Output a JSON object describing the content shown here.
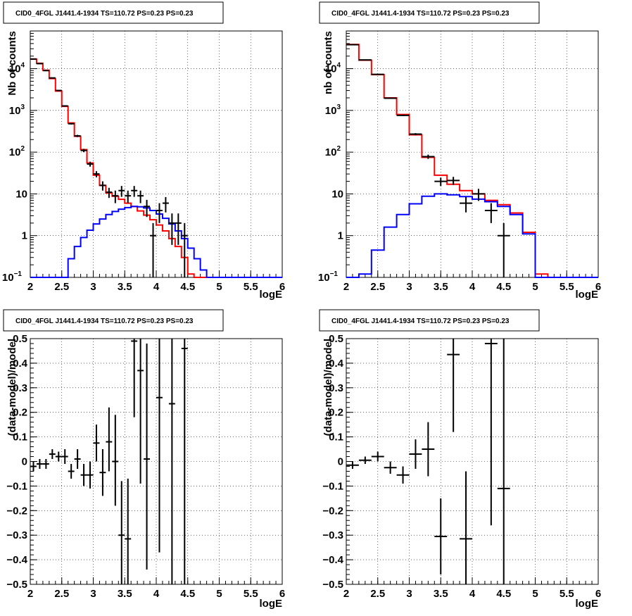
{
  "chart_data": [
    {
      "type": "line",
      "panel": "top-left",
      "title": "CID0_4FGL J1441.4-1934 TS=110.72 PS=0.23 PS=0.23",
      "xlabel": "logE",
      "ylabel": "Nb of counts",
      "xlim": [
        2,
        6
      ],
      "ylim": [
        0.1,
        80000
      ],
      "yscale": "log",
      "grid": true,
      "x_ticks": [
        "2",
        "2.5",
        "3",
        "3.5",
        "4",
        "4.5",
        "5",
        "5.5",
        "6"
      ],
      "y_ticks": [
        {
          "value": 0.1,
          "label": "10",
          "sup": "−1"
        },
        {
          "value": 1,
          "label": "1",
          "sup": ""
        },
        {
          "value": 10,
          "label": "10",
          "sup": ""
        },
        {
          "value": 100,
          "label": "10",
          "sup": "2"
        },
        {
          "value": 1000,
          "label": "10",
          "sup": "3"
        },
        {
          "value": 10000,
          "label": "10",
          "sup": "4"
        }
      ],
      "bin_edges": [
        2.0,
        2.1,
        2.2,
        2.3,
        2.4,
        2.5,
        2.6,
        2.7,
        2.8,
        2.9,
        3.0,
        3.1,
        3.2,
        3.3,
        3.4,
        3.5,
        3.6,
        3.7,
        3.8,
        3.9,
        4.0,
        4.1,
        4.2,
        4.3,
        4.4,
        4.5,
        4.6,
        4.7,
        4.8,
        4.9,
        5.0,
        5.1,
        5.2,
        5.3,
        5.4,
        5.5,
        5.6,
        5.7,
        5.8,
        5.9,
        6.0
      ],
      "series": [
        {
          "role": "total_model",
          "color": "#ff0000",
          "values": [
            17000,
            13500,
            9200,
            5800,
            2900,
            1250,
            500,
            240,
            115,
            55,
            28,
            16,
            10.5,
            8.8,
            7.4,
            6.0,
            5.0,
            3.9,
            3.1,
            2.4,
            1.8,
            1.3,
            0.85,
            0.55,
            0.3,
            0.12,
            0.1,
            0.1,
            0.1,
            0.1,
            0.1,
            0.1,
            0.1,
            0.1,
            0.1,
            0.1,
            0.1,
            0.1,
            0.1,
            0.1
          ]
        },
        {
          "role": "source_model",
          "color": "#0000ff",
          "values": [
            0.1,
            0.1,
            0.1,
            0.1,
            0.1,
            0.1,
            0.28,
            0.55,
            0.9,
            1.35,
            1.9,
            2.5,
            3.2,
            3.8,
            4.3,
            4.7,
            5.0,
            4.9,
            4.6,
            4.0,
            3.3,
            2.6,
            1.9,
            1.3,
            0.85,
            0.5,
            0.28,
            0.15,
            0.1,
            0.1,
            0.1,
            0.1,
            0.1,
            0.1,
            0.1,
            0.1,
            0.1,
            0.1,
            0.1,
            0.1
          ]
        }
      ],
      "data_points": [
        {
          "x": 2.05,
          "y": 17000,
          "lo": 16800,
          "hi": 17200
        },
        {
          "x": 2.15,
          "y": 13200,
          "lo": 13000,
          "hi": 13400
        },
        {
          "x": 2.25,
          "y": 9000,
          "lo": 8800,
          "hi": 9200
        },
        {
          "x": 2.35,
          "y": 6000,
          "lo": 5900,
          "hi": 6100
        },
        {
          "x": 2.45,
          "y": 3000,
          "lo": 2950,
          "hi": 3050
        },
        {
          "x": 2.55,
          "y": 1280,
          "lo": 1240,
          "hi": 1320
        },
        {
          "x": 2.65,
          "y": 480,
          "lo": 460,
          "hi": 500
        },
        {
          "x": 2.75,
          "y": 245,
          "lo": 230,
          "hi": 260
        },
        {
          "x": 2.85,
          "y": 110,
          "lo": 100,
          "hi": 120
        },
        {
          "x": 2.95,
          "y": 52,
          "lo": 45,
          "hi": 59
        },
        {
          "x": 3.05,
          "y": 30,
          "lo": 25,
          "hi": 35
        },
        {
          "x": 3.15,
          "y": 16,
          "lo": 12,
          "hi": 20
        },
        {
          "x": 3.25,
          "y": 11,
          "lo": 8,
          "hi": 14
        },
        {
          "x": 3.35,
          "y": 9,
          "lo": 6,
          "hi": 12
        },
        {
          "x": 3.45,
          "y": 12,
          "lo": 8.5,
          "hi": 15.5
        },
        {
          "x": 3.55,
          "y": 9,
          "lo": 6,
          "hi": 12
        },
        {
          "x": 3.65,
          "y": 12,
          "lo": 8.5,
          "hi": 15.5
        },
        {
          "x": 3.75,
          "y": 9,
          "lo": 6,
          "hi": 12
        },
        {
          "x": 3.85,
          "y": 5,
          "lo": 2.8,
          "hi": 7.2
        },
        {
          "x": 3.95,
          "y": 1,
          "lo": 0.1,
          "hi": 2
        },
        {
          "x": 4.05,
          "y": 4,
          "lo": 2,
          "hi": 6
        },
        {
          "x": 4.15,
          "y": 6,
          "lo": 3.6,
          "hi": 8.4
        },
        {
          "x": 4.25,
          "y": 2,
          "lo": 0.6,
          "hi": 3.4
        },
        {
          "x": 4.35,
          "y": 2,
          "lo": 0.6,
          "hi": 3.4
        },
        {
          "x": 4.45,
          "y": 1,
          "lo": 0.1,
          "hi": 2
        }
      ]
    },
    {
      "type": "line",
      "panel": "top-right",
      "title": "CID0_4FGL J1441.4-1934 TS=110.72 PS=0.23 PS=0.23",
      "xlabel": "logE",
      "ylabel": "nb of counts",
      "xlim": [
        2,
        6
      ],
      "ylim": [
        0.1,
        80000
      ],
      "yscale": "log",
      "grid": true,
      "x_ticks": [
        "2",
        "2.5",
        "3",
        "3.5",
        "4",
        "4.5",
        "5",
        "5.5",
        "6"
      ],
      "y_ticks": [
        {
          "value": 0.1,
          "label": "10",
          "sup": "−1"
        },
        {
          "value": 1,
          "label": "1",
          "sup": ""
        },
        {
          "value": 10,
          "label": "10",
          "sup": ""
        },
        {
          "value": 100,
          "label": "10",
          "sup": "2"
        },
        {
          "value": 1000,
          "label": "10",
          "sup": "3"
        },
        {
          "value": 10000,
          "label": "10",
          "sup": "4"
        }
      ],
      "bin_edges": [
        2.0,
        2.2,
        2.4,
        2.6,
        2.8,
        3.0,
        3.2,
        3.4,
        3.6,
        3.8,
        4.0,
        4.2,
        4.4,
        4.6,
        4.8,
        5.0,
        5.2,
        5.4,
        5.6,
        5.8,
        6.0
      ],
      "series": [
        {
          "role": "total_model",
          "color": "#ff0000",
          "values": [
            38000,
            16000,
            7200,
            2000,
            800,
            260,
            75,
            28,
            17,
            12,
            10,
            7,
            5.5,
            3.5,
            1.2,
            0.12,
            0.1,
            0.1,
            0.1,
            0.1
          ]
        },
        {
          "role": "source_model",
          "color": "#0000ff",
          "values": [
            0.1,
            0.12,
            0.45,
            1.6,
            3.2,
            5.8,
            8.8,
            10,
            9.5,
            8.6,
            7.5,
            6.5,
            5.0,
            3.2,
            1.1,
            0.1,
            0.1,
            0.1,
            0.1,
            0.1
          ]
        }
      ],
      "data_points": [
        {
          "x": 2.1,
          "y": 37500,
          "lo": 37300,
          "hi": 37700
        },
        {
          "x": 2.3,
          "y": 16200,
          "lo": 16000,
          "hi": 16400
        },
        {
          "x": 2.5,
          "y": 7300,
          "lo": 7200,
          "hi": 7400
        },
        {
          "x": 2.7,
          "y": 1960,
          "lo": 1915,
          "hi": 2005
        },
        {
          "x": 2.9,
          "y": 760,
          "lo": 732,
          "hi": 788
        },
        {
          "x": 3.1,
          "y": 270,
          "lo": 254,
          "hi": 286
        },
        {
          "x": 3.3,
          "y": 78,
          "lo": 69,
          "hi": 87
        },
        {
          "x": 3.5,
          "y": 20,
          "lo": 15.5,
          "hi": 24.5
        },
        {
          "x": 3.7,
          "y": 21,
          "lo": 16.4,
          "hi": 25.6
        },
        {
          "x": 3.9,
          "y": 6,
          "lo": 3.6,
          "hi": 8.4
        },
        {
          "x": 4.1,
          "y": 10,
          "lo": 6.8,
          "hi": 13.2
        },
        {
          "x": 4.3,
          "y": 4,
          "lo": 2,
          "hi": 6
        },
        {
          "x": 4.5,
          "y": 1,
          "lo": 0.1,
          "hi": 2
        }
      ]
    },
    {
      "type": "scatter",
      "panel": "bottom-left",
      "title": "CID0_4FGL J1441.4-1934 TS=110.72 PS=0.23 PS=0.23",
      "xlabel": "logE",
      "ylabel": "(data-model)/model",
      "xlim": [
        2,
        6
      ],
      "ylim": [
        -0.5,
        0.5
      ],
      "grid": true,
      "x_ticks": [
        "2",
        "2.5",
        "3",
        "3.5",
        "4",
        "4.5",
        "5",
        "5.5",
        "6"
      ],
      "y_ticks": [
        "−0.5",
        "−0.4",
        "−0.3",
        "−0.2",
        "−0.1",
        "0",
        "0.1",
        "0.2",
        "0.3",
        "0.4",
        "0.5"
      ],
      "half_bin": 0.05,
      "points": [
        {
          "x": 2.05,
          "y": -0.02,
          "lo": -0.04,
          "hi": 0.0
        },
        {
          "x": 2.15,
          "y": -0.01,
          "lo": -0.03,
          "hi": 0.01
        },
        {
          "x": 2.25,
          "y": -0.01,
          "lo": -0.03,
          "hi": 0.01
        },
        {
          "x": 2.35,
          "y": 0.03,
          "lo": 0.01,
          "hi": 0.05
        },
        {
          "x": 2.45,
          "y": 0.02,
          "lo": 0.0,
          "hi": 0.04
        },
        {
          "x": 2.55,
          "y": 0.02,
          "lo": -0.01,
          "hi": 0.05
        },
        {
          "x": 2.65,
          "y": -0.04,
          "lo": -0.07,
          "hi": -0.01
        },
        {
          "x": 2.75,
          "y": 0.01,
          "lo": -0.03,
          "hi": 0.05
        },
        {
          "x": 2.85,
          "y": -0.055,
          "lo": -0.1,
          "hi": -0.01
        },
        {
          "x": 2.95,
          "y": -0.055,
          "lo": -0.11,
          "hi": 0.0
        },
        {
          "x": 3.05,
          "y": 0.075,
          "lo": -0.0,
          "hi": 0.15
        },
        {
          "x": 3.15,
          "y": -0.045,
          "lo": -0.14,
          "hi": 0.05
        },
        {
          "x": 3.25,
          "y": 0.08,
          "lo": -0.04,
          "hi": 0.22
        },
        {
          "x": 3.35,
          "y": 0.0,
          "lo": -0.18,
          "hi": 0.19
        },
        {
          "x": 3.45,
          "y": -0.3,
          "lo": -0.5,
          "hi": -0.08
        },
        {
          "x": 3.55,
          "y": -0.315,
          "lo": -0.5,
          "hi": -0.07
        },
        {
          "x": 3.65,
          "y": 0.49,
          "lo": 0.18,
          "hi": 0.5
        },
        {
          "x": 3.75,
          "y": 0.37,
          "lo": -0.09,
          "hi": 0.5
        },
        {
          "x": 3.85,
          "y": 0.01,
          "lo": -0.44,
          "hi": 0.48
        },
        {
          "x": 4.05,
          "y": 0.26,
          "lo": -0.37,
          "hi": 0.5
        },
        {
          "x": 4.25,
          "y": 0.235,
          "lo": -0.5,
          "hi": 0.5
        },
        {
          "x": 4.45,
          "y": 0.46,
          "lo": -0.5,
          "hi": 0.5
        }
      ]
    },
    {
      "type": "scatter",
      "panel": "bottom-right",
      "title": "CID0_4FGL J1441.4-1934 TS=110.72 PS=0.23 PS=0.23",
      "xlabel": "logE",
      "ylabel": "(data-model)/model",
      "xlim": [
        2,
        6
      ],
      "ylim": [
        -0.5,
        0.5
      ],
      "grid": true,
      "x_ticks": [
        "2",
        "2.5",
        "3",
        "3.5",
        "4",
        "4.5",
        "5",
        "5.5",
        "6"
      ],
      "y_ticks": [
        "−0.5",
        "−0.4",
        "−0.3",
        "−0.2",
        "−0.1",
        "0",
        "0.1",
        "0.2",
        "0.3",
        "0.4",
        "0.5"
      ],
      "half_bin": 0.1,
      "points": [
        {
          "x": 2.1,
          "y": -0.015,
          "lo": -0.03,
          "hi": 0.0
        },
        {
          "x": 2.3,
          "y": 0.005,
          "lo": -0.01,
          "hi": 0.02
        },
        {
          "x": 2.5,
          "y": 0.02,
          "lo": 0.0,
          "hi": 0.04
        },
        {
          "x": 2.7,
          "y": -0.025,
          "lo": -0.05,
          "hi": 0.0
        },
        {
          "x": 2.9,
          "y": -0.055,
          "lo": -0.09,
          "hi": -0.02
        },
        {
          "x": 3.1,
          "y": 0.03,
          "lo": -0.03,
          "hi": 0.09
        },
        {
          "x": 3.3,
          "y": 0.05,
          "lo": -0.06,
          "hi": 0.16
        },
        {
          "x": 3.5,
          "y": -0.305,
          "lo": -0.46,
          "hi": -0.15
        },
        {
          "x": 3.7,
          "y": 0.435,
          "lo": 0.12,
          "hi": 0.5
        },
        {
          "x": 3.9,
          "y": -0.315,
          "lo": -0.5,
          "hi": -0.04
        },
        {
          "x": 4.3,
          "y": 0.48,
          "lo": -0.26,
          "hi": 0.5
        },
        {
          "x": 4.5,
          "y": -0.11,
          "lo": -0.5,
          "hi": 0.5
        }
      ]
    }
  ]
}
